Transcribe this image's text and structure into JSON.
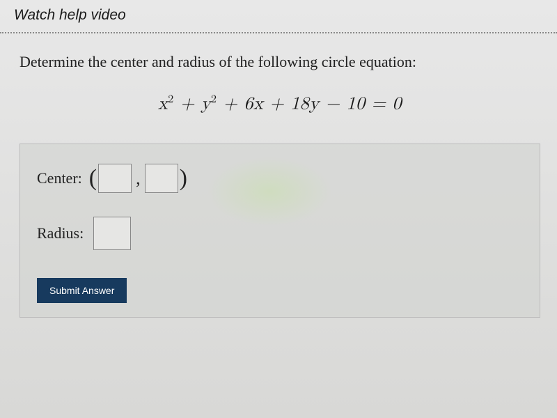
{
  "header": {
    "watch_link_label": "Watch help video"
  },
  "question": {
    "prompt": "Determine the center and radius of the following circle equation:",
    "equation_html": "x<sup>2</sup> + y<sup>2</sup> + 6x + 18y − 10 = 0"
  },
  "answers": {
    "center_label": "Center:",
    "radius_label": "Radius:",
    "center_x": "",
    "center_y": "",
    "radius": ""
  },
  "actions": {
    "submit_label": "Submit Answer"
  },
  "styling": {
    "background_gradient_top": "#e8e8e8",
    "background_gradient_bottom": "#d8d8d6",
    "answer_box_bg": "rgba(210,212,208,0.6)",
    "submit_bg": "#173a5e",
    "submit_color": "#ffffff",
    "input_border": "#888888",
    "input_bg": "#e6e6e4",
    "text_color": "#222222",
    "dotted_divider": "#888888",
    "watch_font": "Comic Sans MS",
    "body_font": "Georgia",
    "question_fontsize": 22,
    "equation_fontsize": 26,
    "watch_fontsize": 21
  }
}
